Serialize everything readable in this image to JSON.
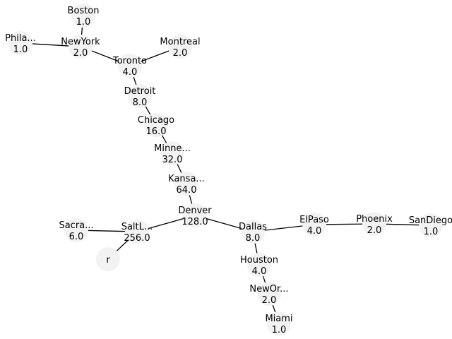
{
  "graph": {
    "node_color": "#f2f2f2",
    "edge_color": "#000000",
    "nodes": [
      {
        "id": "boston",
        "name": "Boston",
        "value": "1.0"
      },
      {
        "id": "phila",
        "name": "Phila...",
        "value": "1.0"
      },
      {
        "id": "newyork",
        "name": "NewYork",
        "value": "2.0"
      },
      {
        "id": "montreal",
        "name": "Montreal",
        "value": "2.0"
      },
      {
        "id": "toronto",
        "name": "Toronto",
        "value": "4.0"
      },
      {
        "id": "detroit",
        "name": "Detroit",
        "value": "8.0"
      },
      {
        "id": "chicago",
        "name": "Chicago",
        "value": "16.0"
      },
      {
        "id": "minne",
        "name": "Minne...",
        "value": "32.0"
      },
      {
        "id": "kansa",
        "name": "Kansa...",
        "value": "64.0"
      },
      {
        "id": "denver",
        "name": "Denver",
        "value": "128.0"
      },
      {
        "id": "saltl",
        "name": "SaltL...",
        "value": "256.0"
      },
      {
        "id": "sacra",
        "name": "Sacra...",
        "value": "6.0"
      },
      {
        "id": "r",
        "name": "r",
        "value": ""
      },
      {
        "id": "dallas",
        "name": "Dallas",
        "value": "8.0"
      },
      {
        "id": "elpaso",
        "name": "ElPaso",
        "value": "4.0"
      },
      {
        "id": "phoenix",
        "name": "Phoenix",
        "value": "2.0"
      },
      {
        "id": "sandiego",
        "name": "SanDiego",
        "value": "1.0"
      },
      {
        "id": "houston",
        "name": "Houston",
        "value": "4.0"
      },
      {
        "id": "newor",
        "name": "NewOr...",
        "value": "2.0"
      },
      {
        "id": "miami",
        "name": "Miami",
        "value": "1.0"
      }
    ],
    "edges": [
      [
        "boston",
        "newyork"
      ],
      [
        "phila",
        "newyork"
      ],
      [
        "newyork",
        "toronto"
      ],
      [
        "montreal",
        "toronto"
      ],
      [
        "toronto",
        "detroit"
      ],
      [
        "detroit",
        "chicago"
      ],
      [
        "chicago",
        "minne"
      ],
      [
        "minne",
        "kansa"
      ],
      [
        "kansa",
        "denver"
      ],
      [
        "denver",
        "saltl"
      ],
      [
        "saltl",
        "sacra"
      ],
      [
        "saltl",
        "r"
      ],
      [
        "denver",
        "dallas"
      ],
      [
        "dallas",
        "elpaso"
      ],
      [
        "elpaso",
        "phoenix"
      ],
      [
        "phoenix",
        "sandiego"
      ],
      [
        "dallas",
        "houston"
      ],
      [
        "houston",
        "newor"
      ],
      [
        "newor",
        "miami"
      ]
    ]
  }
}
